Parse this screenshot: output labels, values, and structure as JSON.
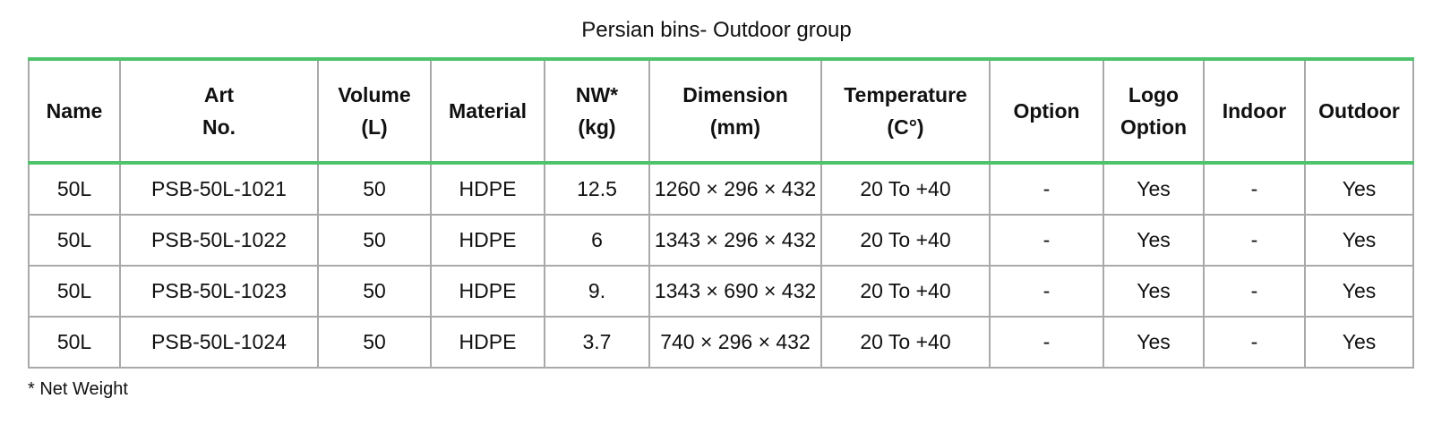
{
  "title": "Persian bins- Outdoor group",
  "table": {
    "header": [
      "Name",
      "Art\nNo.",
      "Volume\n(L)",
      "Material",
      "NW*\n(kg)",
      "Dimension\n(mm)",
      "Temperature\n(C°)",
      "Option",
      "Logo\nOption",
      "Indoor",
      "Outdoor"
    ],
    "rows": [
      [
        "50L",
        "PSB-50L-1021",
        "50",
        "HDPE",
        "12.5",
        "1260 × 296 × 432",
        "20 To +40",
        "-",
        "Yes",
        "-",
        "Yes"
      ],
      [
        "50L",
        "PSB-50L-1022",
        "50",
        "HDPE",
        "6",
        "1343 × 296 × 432",
        "20 To +40",
        "-",
        "Yes",
        "-",
        "Yes"
      ],
      [
        "50L",
        "PSB-50L-1023",
        "50",
        "HDPE",
        "9.",
        "1343 × 690 × 432",
        "20 To +40",
        "-",
        "Yes",
        "-",
        "Yes"
      ],
      [
        "50L",
        "PSB-50L-1024",
        "50",
        "HDPE",
        "3.7",
        "740 × 296 × 432",
        "20 To +40",
        "-",
        "Yes",
        "-",
        "Yes"
      ]
    ]
  },
  "footnote": "* Net Weight"
}
